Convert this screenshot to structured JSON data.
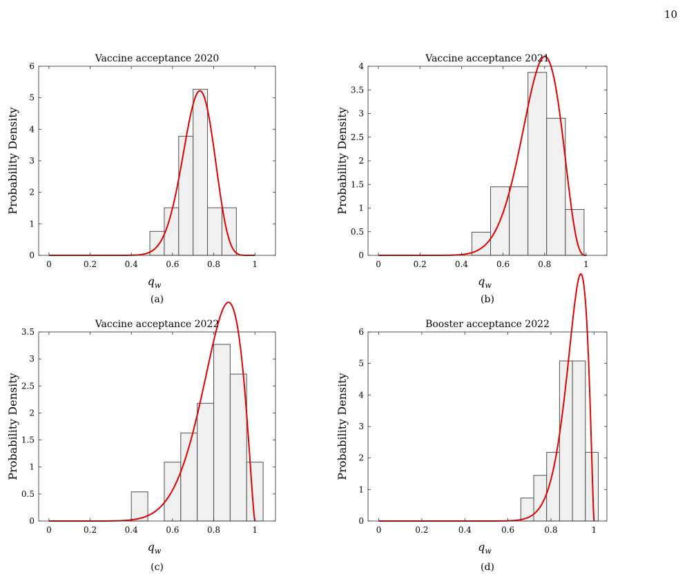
{
  "page_number": "10",
  "chart_data": [
    {
      "type": "bar",
      "subtype": "histogram-with-density-curve",
      "title": "Vaccine acceptance 2020",
      "xlabel_main": "q",
      "xlabel_sub": "w",
      "ylabel": "Probability Density",
      "caption": "(a)",
      "xlim": [
        -0.05,
        1.1
      ],
      "ylim": [
        0,
        6
      ],
      "xticks": [
        0,
        0.2,
        0.4,
        0.6,
        0.8,
        1
      ],
      "xtick_labels": [
        "0",
        "0.2",
        "0.4",
        "0.6",
        "0.8",
        "1"
      ],
      "yticks": [
        0,
        1,
        2,
        3,
        4,
        5,
        6
      ],
      "ytick_labels": [
        "0",
        "1",
        "2",
        "3",
        "4",
        "5",
        "6"
      ],
      "bins": [
        {
          "x0": 0.49,
          "x1": 0.56,
          "value": 0.76
        },
        {
          "x0": 0.56,
          "x1": 0.63,
          "value": 1.51
        },
        {
          "x0": 0.63,
          "x1": 0.7,
          "value": 3.78
        },
        {
          "x0": 0.7,
          "x1": 0.77,
          "value": 5.27
        },
        {
          "x0": 0.77,
          "x1": 0.84,
          "value": 1.51
        },
        {
          "x0": 0.84,
          "x1": 0.91,
          "value": 1.51
        }
      ],
      "curve": {
        "distribution": "beta",
        "a": 24.6,
        "b": 9.6,
        "range": [
          0,
          1
        ]
      },
      "grid": false,
      "colors": {
        "bars": "#f0f0f0",
        "bar_edge": "#4d4d4d",
        "curve": "#e00000"
      }
    },
    {
      "type": "bar",
      "subtype": "histogram-with-density-curve",
      "title": "Vaccine acceptance 2021",
      "xlabel_main": "q",
      "xlabel_sub": "w",
      "ylabel": "Probability Density",
      "caption": "(b)",
      "xlim": [
        -0.05,
        1.1
      ],
      "ylim": [
        0,
        4
      ],
      "xticks": [
        0,
        0.2,
        0.4,
        0.6,
        0.8,
        1
      ],
      "xtick_labels": [
        "0",
        "0.2",
        "0.4",
        "0.6",
        "0.8",
        "1"
      ],
      "yticks": [
        0,
        0.5,
        1,
        1.5,
        2,
        2.5,
        3,
        3.5,
        4
      ],
      "ytick_labels": [
        "0",
        "0.5",
        "1",
        "1.5",
        "2",
        "2.5",
        "3",
        "3.5",
        "4"
      ],
      "bins": [
        {
          "x0": 0.45,
          "x1": 0.54,
          "value": 0.49
        },
        {
          "x0": 0.54,
          "x1": 0.63,
          "value": 1.45
        },
        {
          "x0": 0.63,
          "x1": 0.72,
          "value": 1.45
        },
        {
          "x0": 0.72,
          "x1": 0.81,
          "value": 3.87
        },
        {
          "x0": 0.81,
          "x1": 0.9,
          "value": 2.9
        },
        {
          "x0": 0.9,
          "x1": 0.99,
          "value": 0.97
        }
      ],
      "curve": {
        "distribution": "beta",
        "a": 14.3,
        "b": 4.3,
        "range": [
          0,
          1
        ]
      },
      "grid": false,
      "colors": {
        "bars": "#f0f0f0",
        "bar_edge": "#4d4d4d",
        "curve": "#e00000"
      }
    },
    {
      "type": "bar",
      "subtype": "histogram-with-density-curve",
      "title": "Vaccine acceptance 2022",
      "xlabel_main": "q",
      "xlabel_sub": "w",
      "ylabel": "Probability Density",
      "caption": "(c)",
      "xlim": [
        -0.05,
        1.1
      ],
      "ylim": [
        0,
        3.5
      ],
      "xticks": [
        0,
        0.2,
        0.4,
        0.6,
        0.8,
        1
      ],
      "xtick_labels": [
        "0",
        "0.2",
        "0.4",
        "0.6",
        "0.8",
        "1"
      ],
      "yticks": [
        0,
        0.5,
        1,
        1.5,
        2,
        2.5,
        3,
        3.5
      ],
      "ytick_labels": [
        "0",
        "0.5",
        "1",
        "1.5",
        "2",
        "2.5",
        "3",
        "3.5"
      ],
      "bins": [
        {
          "x0": 0.4,
          "x1": 0.48,
          "value": 0.54
        },
        {
          "x0": 0.56,
          "x1": 0.64,
          "value": 1.09
        },
        {
          "x0": 0.64,
          "x1": 0.72,
          "value": 1.63
        },
        {
          "x0": 0.72,
          "x1": 0.8,
          "value": 2.18
        },
        {
          "x0": 0.8,
          "x1": 0.88,
          "value": 3.27
        },
        {
          "x0": 0.88,
          "x1": 0.96,
          "value": 2.72
        },
        {
          "x0": 0.96,
          "x1": 1.04,
          "value": 1.09
        }
      ],
      "curve": {
        "distribution": "beta",
        "a": 10.5,
        "b": 2.4,
        "range": [
          0,
          1
        ]
      },
      "grid": false,
      "colors": {
        "bars": "#f0f0f0",
        "bar_edge": "#4d4d4d",
        "curve": "#e00000"
      }
    },
    {
      "type": "bar",
      "subtype": "histogram-with-density-curve",
      "title": "Booster acceptance 2022",
      "xlabel_main": "q",
      "xlabel_sub": "w",
      "ylabel": "Probability Density",
      "caption": "(d)",
      "xlim": [
        -0.05,
        1.06
      ],
      "ylim": [
        0,
        6
      ],
      "xticks": [
        0,
        0.2,
        0.4,
        0.6,
        0.8,
        1
      ],
      "xtick_labels": [
        "0",
        "0.2",
        "0.4",
        "0.6",
        "0.8",
        "1"
      ],
      "yticks": [
        0,
        1,
        2,
        3,
        4,
        5,
        6
      ],
      "ytick_labels": [
        "0",
        "1",
        "2",
        "3",
        "4",
        "5",
        "6"
      ],
      "bins": [
        {
          "x0": 0.66,
          "x1": 0.72,
          "value": 0.73
        },
        {
          "x0": 0.72,
          "x1": 0.78,
          "value": 1.45
        },
        {
          "x0": 0.78,
          "x1": 0.84,
          "value": 2.18
        },
        {
          "x0": 0.84,
          "x1": 0.9,
          "value": 5.08
        },
        {
          "x0": 0.9,
          "x1": 0.96,
          "value": 5.08
        },
        {
          "x0": 0.96,
          "x1": 1.02,
          "value": 2.18
        }
      ],
      "curve": {
        "distribution": "beta",
        "a": 22.5,
        "b": 2.4,
        "range": [
          0,
          1
        ]
      },
      "grid": false,
      "colors": {
        "bars": "#f0f0f0",
        "bar_edge": "#4d4d4d",
        "curve": "#e00000"
      }
    }
  ]
}
